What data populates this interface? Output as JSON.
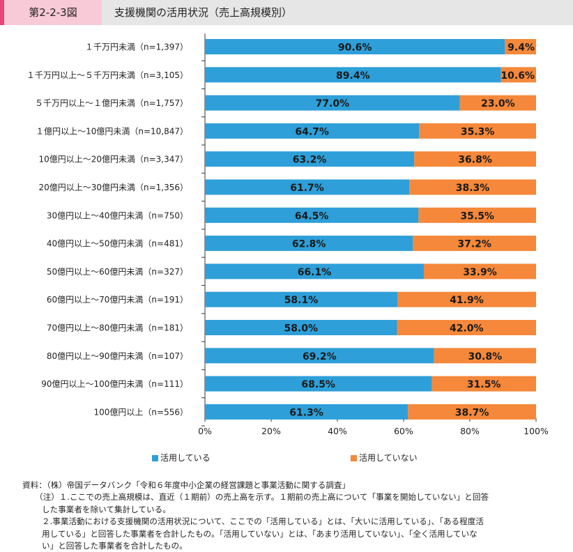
{
  "header": {
    "figure_number": "第2-2-3図",
    "title": "支援機関の活用状況（売上高規模別）"
  },
  "chart_data": {
    "type": "bar",
    "orientation": "horizontal",
    "stacked": true,
    "categories": [
      "１千万円未満（n=1,397）",
      "１千万円以上～５千万円未満（n=3,105）",
      "５千万円以上～１億円未満（n=1,757）",
      "１億円以上～10億円未満（n=10,847）",
      "10億円以上～20億円未満（n=3,347）",
      "20億円以上～30億円未満（n=1,356）",
      "30億円以上～40億円未満（n=750）",
      "40億円以上～50億円未満（n=481）",
      "50億円以上～60億円未満（n=327）",
      "60億円以上～70億円未満（n=191）",
      "70億円以上～80億円未満（n=181）",
      "80億円以上～90億円未満（n=107）",
      "90億円以上～100億円未満（n=111）",
      "100億円以上（n=556）"
    ],
    "series": [
      {
        "name": "活用している",
        "color": "#2e9fd8",
        "values": [
          90.6,
          89.4,
          77.0,
          64.7,
          63.2,
          61.7,
          64.5,
          62.8,
          66.1,
          58.1,
          58.0,
          69.2,
          68.5,
          61.3
        ],
        "labels": [
          "90.6%",
          "89.4%",
          "77.0%",
          "64.7%",
          "63.2%",
          "61.7%",
          "64.5%",
          "62.8%",
          "66.1%",
          "58.1%",
          "58.0%",
          "69.2%",
          "68.5%",
          "61.3%"
        ]
      },
      {
        "name": "活用していない",
        "color": "#f5883a",
        "values": [
          9.4,
          10.6,
          23.0,
          35.3,
          36.8,
          38.3,
          35.5,
          37.2,
          33.9,
          41.9,
          42.0,
          30.8,
          31.5,
          38.7
        ],
        "labels": [
          "9.4%",
          "10.6%",
          "23.0%",
          "35.3%",
          "36.8%",
          "38.3%",
          "35.5%",
          "37.2%",
          "33.9%",
          "41.9%",
          "42.0%",
          "30.8%",
          "31.5%",
          "38.7%"
        ]
      }
    ],
    "xlim": [
      0,
      100
    ],
    "x_ticks": [
      "0%",
      "20%",
      "40%",
      "60%",
      "80%",
      "100%"
    ],
    "legend_position": "bottom"
  },
  "notes": {
    "source": "資料：（株）帝国データバンク「令和６年度中小企業の経営課題と事業活動に関する調査」",
    "note1_line1": "（注）１.ここでの売上高規模は、直近（１期前）の売上高を示す。１期前の売上高について「事業を開始していない」と回答",
    "note1_line2": "した事業者を除いて集計している。",
    "note2_line1": "２.事業活動における支援機関の活用状況について、ここでの「活用している」とは、「大いに活用している」、「ある程度活",
    "note2_line2": "用している」と回答した事業者を合計したもの。「活用していない」とは、「あまり活用していない」、「全く活用していな",
    "note2_line3": "い」と回答した事業者を合計したもの。"
  }
}
